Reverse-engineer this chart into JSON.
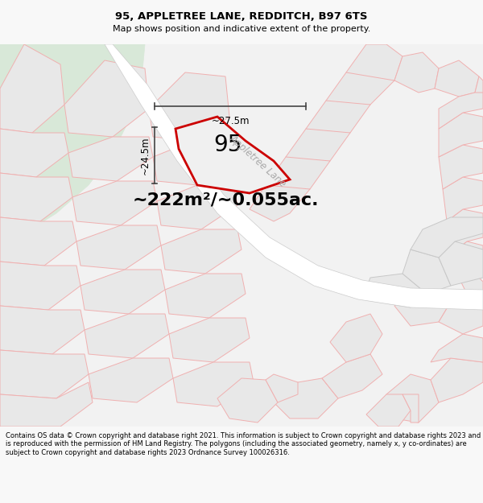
{
  "title": "95, APPLETREE LANE, REDDITCH, B97 6TS",
  "subtitle": "Map shows position and indicative extent of the property.",
  "area_text": "~222m²/~0.055ac.",
  "plot_number": "95",
  "dim_height": "~24.5m",
  "dim_width": "~27.5m",
  "road_label": "Appletree Lane",
  "footer": "Contains OS data © Crown copyright and database right 2021. This information is subject to Crown copyright and database rights 2023 and is reproduced with the permission of HM Land Registry. The polygons (including the associated geometry, namely x, y co-ordinates) are subject to Crown copyright and database rights 2023 Ordnance Survey 100026316.",
  "bg_color": "#f8f8f8",
  "map_bg": "#f0f0f0",
  "plot_fill": "#f0f0f0",
  "plot_edge": "#cc0000",
  "green_color": "#d8e8d8",
  "road_fill": "#ffffff",
  "block_fill": "#e8e8e8",
  "block_edge": "#f0b0b0",
  "block_edge2": "#c8c8c8",
  "dim_color": "#444444"
}
